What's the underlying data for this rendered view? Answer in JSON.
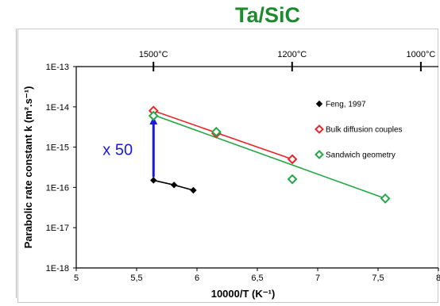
{
  "chart_data": {
    "type": "scatter",
    "title": "Ta/SiC",
    "xlabel": "10000/T (K⁻¹)",
    "ylabel": "Parabolic rate constant k (m².s⁻¹)",
    "xlim": [
      5,
      8
    ],
    "ylim_log10": [
      -18,
      -13
    ],
    "x_ticks": [
      "5",
      "5,5",
      "6",
      "6,5",
      "7",
      "7,5",
      "8"
    ],
    "x_tick_values": [
      5,
      5.5,
      6,
      6.5,
      7,
      7.5,
      8
    ],
    "y_ticks": [
      "1E-13",
      "1E-14",
      "1E-15",
      "1E-16",
      "1E-17",
      "1E-18"
    ],
    "y_tick_exponents": [
      -13,
      -14,
      -15,
      -16,
      -17,
      -18
    ],
    "top_axis": {
      "labels": [
        "1500°C",
        "1200°C",
        "1000°C"
      ],
      "celsius": [
        1500,
        1200,
        1000
      ]
    },
    "series": [
      {
        "name": "Feng, 1997",
        "marker": "filled-diamond",
        "color": "#000000",
        "x": [
          5.64,
          5.81,
          5.97
        ],
        "y": [
          1.5e-16,
          1.15e-16,
          8.5e-17
        ],
        "connected": true
      },
      {
        "name": "Bulk diffusion couples",
        "marker": "open-diamond",
        "color": "#e8262a",
        "x": [
          5.64,
          6.16,
          6.79
        ],
        "y": [
          8e-15,
          2.2e-15,
          5e-16
        ],
        "fit_line": [
          [
            5.64,
            8e-15
          ],
          [
            6.79,
            5e-16
          ]
        ]
      },
      {
        "name": "Sandwich geometry",
        "marker": "open-diamond",
        "color": "#22a845",
        "x": [
          5.64,
          6.16,
          6.79,
          7.56
        ],
        "y": [
          6e-15,
          2.4e-15,
          1.6e-16,
          5.3e-17
        ],
        "fit_line": [
          [
            5.64,
            6.3e-15
          ],
          [
            7.56,
            5.3e-17
          ]
        ]
      }
    ],
    "annotation": {
      "text": "x 50",
      "color": "#1a1adb",
      "arrow_from": [
        5.64,
        1.5e-16
      ],
      "arrow_to": [
        5.64,
        6e-15
      ]
    },
    "legend_position": "top-right",
    "grid": false
  }
}
